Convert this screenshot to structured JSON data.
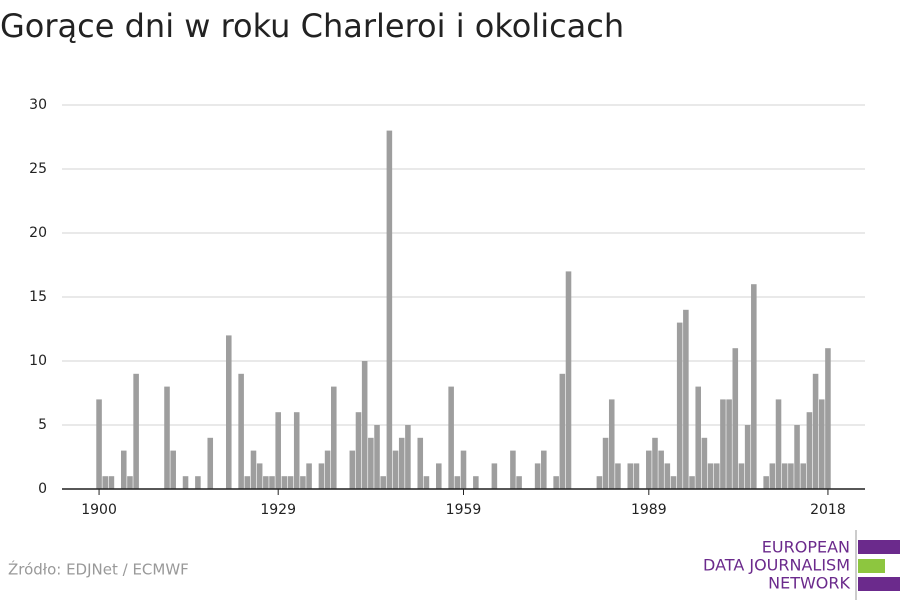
{
  "chart_data": {
    "type": "bar",
    "title": "Gorące dni w roku Charleroi i okolicach",
    "source": "Źródło: EDJNet / ECMWF",
    "logo": [
      "EUROPEAN",
      "DATA JOURNALISM",
      "NETWORK"
    ],
    "x": [
      1900,
      1901,
      1902,
      1903,
      1904,
      1905,
      1906,
      1907,
      1908,
      1909,
      1910,
      1911,
      1912,
      1913,
      1914,
      1915,
      1916,
      1917,
      1918,
      1919,
      1920,
      1921,
      1922,
      1923,
      1924,
      1925,
      1926,
      1927,
      1928,
      1929,
      1930,
      1931,
      1932,
      1933,
      1934,
      1935,
      1936,
      1937,
      1938,
      1939,
      1940,
      1941,
      1942,
      1943,
      1944,
      1945,
      1946,
      1947,
      1948,
      1949,
      1950,
      1951,
      1952,
      1953,
      1954,
      1955,
      1956,
      1957,
      1958,
      1959,
      1960,
      1961,
      1962,
      1963,
      1964,
      1965,
      1966,
      1967,
      1968,
      1969,
      1970,
      1971,
      1972,
      1973,
      1974,
      1975,
      1976,
      1977,
      1978,
      1979,
      1980,
      1981,
      1982,
      1983,
      1984,
      1985,
      1986,
      1987,
      1988,
      1989,
      1990,
      1991,
      1992,
      1993,
      1994,
      1995,
      1996,
      1997,
      1998,
      1999,
      2000,
      2001,
      2002,
      2003,
      2004,
      2005,
      2006,
      2007,
      2008,
      2009,
      2010,
      2011,
      2012,
      2013,
      2014,
      2015,
      2016,
      2017,
      2018
    ],
    "values": [
      7,
      1,
      1,
      0,
      3,
      1,
      9,
      0,
      0,
      0,
      0,
      8,
      3,
      0,
      1,
      0,
      1,
      0,
      4,
      0,
      0,
      12,
      0,
      9,
      1,
      3,
      2,
      1,
      1,
      6,
      1,
      1,
      6,
      1,
      2,
      0,
      2,
      3,
      8,
      0,
      0,
      3,
      6,
      10,
      4,
      5,
      1,
      28,
      3,
      4,
      5,
      0,
      4,
      1,
      0,
      2,
      0,
      8,
      1,
      3,
      0,
      1,
      0,
      0,
      2,
      0,
      0,
      3,
      1,
      0,
      0,
      2,
      3,
      0,
      1,
      9,
      17,
      0,
      0,
      0,
      0,
      1,
      4,
      7,
      2,
      0,
      2,
      2,
      0,
      3,
      4,
      3,
      2,
      1,
      13,
      14,
      1,
      8,
      4,
      2,
      2,
      7,
      7,
      11,
      2,
      5,
      16,
      0,
      1,
      2,
      7,
      2,
      2,
      5,
      2,
      6,
      9,
      7,
      11
    ],
    "color": "#9e9e9e",
    "xlim": [
      1894,
      2024
    ],
    "xticks": [
      1900,
      1929,
      1959,
      1989,
      2018
    ],
    "ylim": [
      0,
      30
    ],
    "yticks": [
      0,
      5,
      10,
      15,
      20,
      25,
      30
    ],
    "grid": true
  }
}
